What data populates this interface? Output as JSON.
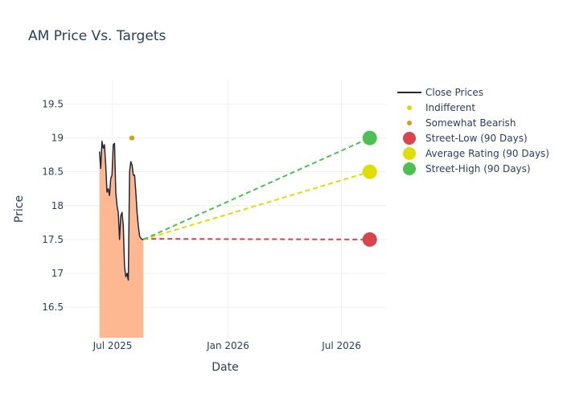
{
  "chart_data": {
    "type": "line",
    "title": "AM Price Vs. Targets",
    "xlabel": "Date",
    "ylabel": "Price",
    "x_ticks": [
      "Jul 2025",
      "Jan 2026",
      "Jul 2026"
    ],
    "y_ticks": [
      "16.5",
      "17",
      "17.5",
      "18",
      "18.5",
      "19",
      "19.5"
    ],
    "ylim": [
      16.05,
      19.85
    ],
    "grid": true,
    "legend_position": "right",
    "colors": {
      "close_line": "#1f2937",
      "close_fill": "#fdb48c",
      "indifferent": "#d9d90f",
      "somewhat_bearish": "#d4a017",
      "street_low": "#d9444f",
      "average": "#dede00",
      "street_high": "#4cc152"
    },
    "series": [
      {
        "name": "Close Prices",
        "kind": "area-line",
        "x": [
          "2025-06-10",
          "2025-06-12",
          "2025-06-14",
          "2025-06-16",
          "2025-06-18",
          "2025-06-20",
          "2025-06-22",
          "2025-06-24",
          "2025-06-26",
          "2025-06-28",
          "2025-06-30",
          "2025-07-02",
          "2025-07-04",
          "2025-07-06",
          "2025-07-08",
          "2025-07-10",
          "2025-07-12",
          "2025-07-14",
          "2025-07-16",
          "2025-07-18",
          "2025-07-20",
          "2025-07-22",
          "2025-07-24",
          "2025-07-26",
          "2025-07-28",
          "2025-07-30",
          "2025-08-01",
          "2025-08-03",
          "2025-08-05",
          "2025-08-07",
          "2025-08-09",
          "2025-08-11",
          "2025-08-13",
          "2025-08-15",
          "2025-08-17",
          "2025-08-19"
        ],
        "y": [
          18.8,
          18.55,
          18.95,
          18.85,
          18.9,
          18.6,
          18.2,
          18.25,
          18.15,
          18.4,
          18.45,
          18.9,
          18.92,
          18.2,
          18.0,
          17.9,
          17.5,
          17.85,
          17.9,
          17.7,
          17.1,
          16.95,
          17.0,
          16.9,
          18.5,
          18.65,
          18.6,
          18.45,
          18.45,
          18.2,
          17.9,
          17.7,
          17.55,
          17.52,
          17.5,
          17.5
        ]
      },
      {
        "name": "Indifferent",
        "kind": "markers",
        "x": [
          "2025-07-31"
        ],
        "y": [
          19.0
        ]
      },
      {
        "name": "Somewhat Bearish",
        "kind": "markers",
        "x": [
          "2025-08-01"
        ],
        "y": [
          19.0
        ]
      },
      {
        "name": "Street-Low (90 Days)",
        "kind": "target",
        "x": [
          "2025-08-19",
          "2026-08-15"
        ],
        "y": [
          17.51,
          17.5
        ]
      },
      {
        "name": "Average Rating (90 Days)",
        "kind": "target",
        "x": [
          "2025-08-19",
          "2026-08-15"
        ],
        "y": [
          17.5,
          18.5
        ]
      },
      {
        "name": "Street-High (90 Days)",
        "kind": "target",
        "x": [
          "2025-08-19",
          "2026-08-15"
        ],
        "y": [
          17.5,
          19.0
        ]
      }
    ]
  }
}
